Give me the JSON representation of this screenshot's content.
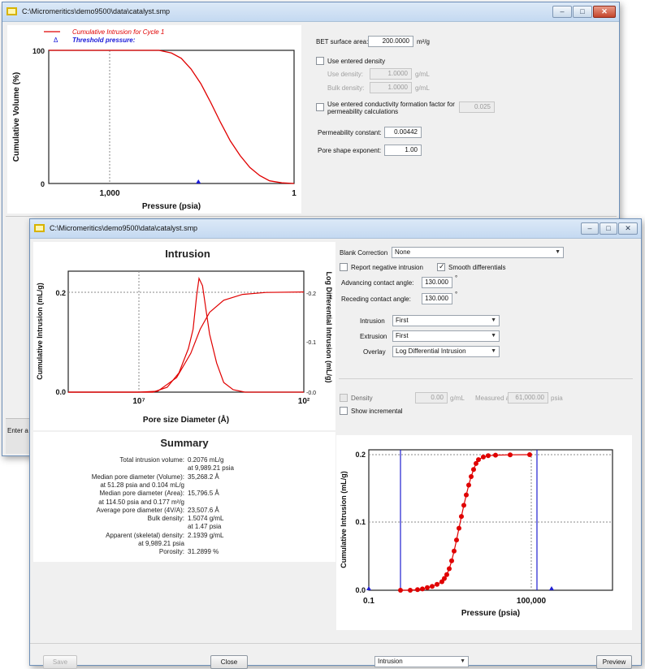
{
  "back_window": {
    "title": "C:\\Micromeritics\\demo9500\\data\\catalyst.smp",
    "plot": {
      "legend": [
        {
          "label": "Cumulative Intrusion for Cycle 1",
          "color": "#e00000"
        },
        {
          "label": "Threshold pressure:",
          "color": "#1a1ad8"
        }
      ]
    },
    "chart_data": {
      "type": "line",
      "xlabel": "Pressure (psia)",
      "ylabel": "Cumulative Volume (%)",
      "x_tick_labels": [
        "1,000",
        "1"
      ],
      "y_tick_labels": [
        "100",
        "0"
      ],
      "series": [
        {
          "name": "Cumulative Intrusion for Cycle 1",
          "points": [
            [
              0.0,
              100
            ],
            [
              0.45,
              100
            ],
            [
              0.5,
              98
            ],
            [
              0.54,
              94
            ],
            [
              0.58,
              86
            ],
            [
              0.62,
              75
            ],
            [
              0.66,
              61
            ],
            [
              0.7,
              46
            ],
            [
              0.74,
              32
            ],
            [
              0.78,
              21
            ],
            [
              0.82,
              12
            ],
            [
              0.86,
              6
            ],
            [
              0.9,
              2
            ],
            [
              0.95,
              0.5
            ],
            [
              1.0,
              0
            ]
          ]
        }
      ],
      "threshold_marker_x": 0.61,
      "ylim": [
        0,
        100
      ]
    },
    "bet_label": "BET surface area:",
    "bet_value": "200.0000",
    "bet_unit": "m²/g",
    "use_density_label": "Use entered density",
    "density1_label": "Use density:",
    "density1_value": "1.0000",
    "density1_unit": "g/mL",
    "density2_label": "Bulk density:",
    "density2_value": "1.0000",
    "density2_unit": "g/mL",
    "conductivity_label_line1": "Use entered conductivity formation factor for",
    "conductivity_label_line2": "permeability calculations",
    "conductivity_value": "0.025",
    "permeability_label": "Permeability constant:",
    "permeability_value": "0.00442",
    "pore_shape_label": "Pore shape exponent:",
    "pore_shape_value": "1.00",
    "enter_text": "Enter a"
  },
  "front_window": {
    "title": "C:\\Micromeritics\\demo9500\\data\\catalyst.smp",
    "intrusion_chart": {
      "title": "Intrusion",
      "xlabel": "Pore size Diameter (Å)",
      "ylabel_left": "Cumulative Intrusion (mL/g)",
      "ylabel_right": "Log Differential Intrusion (mL/g)",
      "x_tick_labels": [
        "10⁷",
        "10²"
      ],
      "y_left_tick_labels": [
        "0.2",
        "0.0"
      ],
      "y_right_tick_labels": [
        "0.2",
        "0.1",
        "0.0"
      ]
    },
    "chart_data": [
      {
        "type": "line",
        "title": "Intrusion",
        "xlabel": "Pore size Diameter (Å)",
        "ylabel": "Cumulative Intrusion (mL/g)",
        "series": [
          {
            "points": [
              [
                0.0,
                0.0
              ],
              [
                0.3,
                0.0
              ],
              [
                0.38,
                0.002
              ],
              [
                0.46,
                0.03
              ],
              [
                0.52,
                0.08
              ],
              [
                0.56,
                0.13
              ],
              [
                0.6,
                0.165
              ],
              [
                0.66,
                0.19
              ],
              [
                0.74,
                0.202
              ],
              [
                0.84,
                0.206
              ],
              [
                1.0,
                0.207
              ]
            ]
          },
          {
            "points": [
              [
                0.0,
                0.0
              ],
              [
                0.36,
                0.0
              ],
              [
                0.42,
                0.01
              ],
              [
                0.47,
                0.04
              ],
              [
                0.51,
                0.09
              ],
              [
                0.53,
                0.13
              ],
              [
                0.545,
                0.2
              ],
              [
                0.555,
                0.235
              ],
              [
                0.57,
                0.22
              ],
              [
                0.585,
                0.17
              ],
              [
                0.6,
                0.12
              ],
              [
                0.63,
                0.06
              ],
              [
                0.66,
                0.02
              ],
              [
                0.7,
                0.005
              ],
              [
                0.75,
                0.0
              ],
              [
                1.0,
                0.0
              ]
            ]
          }
        ],
        "ylim": [
          0,
          0.25
        ]
      },
      {
        "type": "scatter",
        "xlabel": "Pressure (psia)",
        "ylabel": "Cumulative Intrusion (mL/g)",
        "x_tick_labels": [
          "0.1",
          "100,000"
        ],
        "y_tick_labels": [
          "0.2",
          "0.1",
          "0.0"
        ],
        "ylim": [
          0,
          0.2076
        ],
        "x": [
          0.13,
          0.17,
          0.2,
          0.22,
          0.24,
          0.26,
          0.28,
          0.3,
          0.31,
          0.32,
          0.33,
          0.34,
          0.35,
          0.36,
          0.37,
          0.38,
          0.39,
          0.4,
          0.41,
          0.42,
          0.43,
          0.44,
          0.45,
          0.47,
          0.49,
          0.52,
          0.58,
          0.66
        ],
        "y": [
          0.0,
          0.0,
          0.001,
          0.002,
          0.004,
          0.006,
          0.009,
          0.013,
          0.018,
          0.024,
          0.033,
          0.045,
          0.06,
          0.077,
          0.095,
          0.113,
          0.13,
          0.146,
          0.161,
          0.174,
          0.185,
          0.194,
          0.2,
          0.204,
          0.206,
          0.2068,
          0.2073,
          0.2076
        ],
        "blue_lines_x": [
          0.13,
          0.69
        ],
        "markers_x": [
          0.0,
          0.75
        ]
      }
    ],
    "blank_correction_label": "Blank Correction",
    "blank_correction_value": "None",
    "report_negative_label": "Report negative intrusion",
    "smooth_differentials_label": "Smooth differentials",
    "advancing_label": "Advancing contact angle:",
    "advancing_value": "130.000",
    "receding_label": "Receding contact angle:",
    "receding_value": "130.000",
    "degree_symbol": "°",
    "intrusion_label": "Intrusion",
    "intrusion_value": "First",
    "extrusion_label": "Extrusion",
    "extrusion_value": "First",
    "overlay_label": "Overlay",
    "overlay_value": "Log Differential Intrusion",
    "density_label": "Density",
    "density_value": "0.00",
    "density_unit": "g/mL",
    "density_at_label": "Measured at",
    "density_at_value": "61,000.00",
    "density_at_unit": "psia",
    "show_incremental_label": "Show incremental",
    "summary": {
      "title": "Summary",
      "rows": [
        {
          "label": "Total intrusion volume:",
          "value": "0.2076 mL/g"
        },
        {
          "label": "",
          "value": "at 9,989.21 psia"
        },
        {
          "label": "Median pore diameter (Volume):",
          "value": "35,268.2 Å"
        },
        {
          "label": "at 51.28 psia and 0.104 mL/g",
          "value": ""
        },
        {
          "label": "Median pore diameter (Area):",
          "value": "15,796.5 Å"
        },
        {
          "label": "at 114.50 psia and 0.177 m²/g",
          "value": ""
        },
        {
          "label": "Average pore diameter (4V/A):",
          "value": "23,507.6 Å"
        },
        {
          "label": "Bulk density:",
          "value": "1.5074 g/mL"
        },
        {
          "label": "",
          "value": "at 1.47 psia"
        },
        {
          "label": "Apparent (skeletal) density:",
          "value": "2.1939 g/mL"
        },
        {
          "label": "at 9,989.21 psia",
          "value": ""
        },
        {
          "label": "Porosity:",
          "value": "31.2899 %"
        }
      ]
    },
    "pressure_chart": {
      "xlabel": "Pressure (psia)",
      "ylabel": "Cumulative Intrusion (mL/g)"
    },
    "buttons": {
      "save": "Save",
      "close": "Close",
      "mode": "Intrusion",
      "preview": "Preview"
    }
  }
}
